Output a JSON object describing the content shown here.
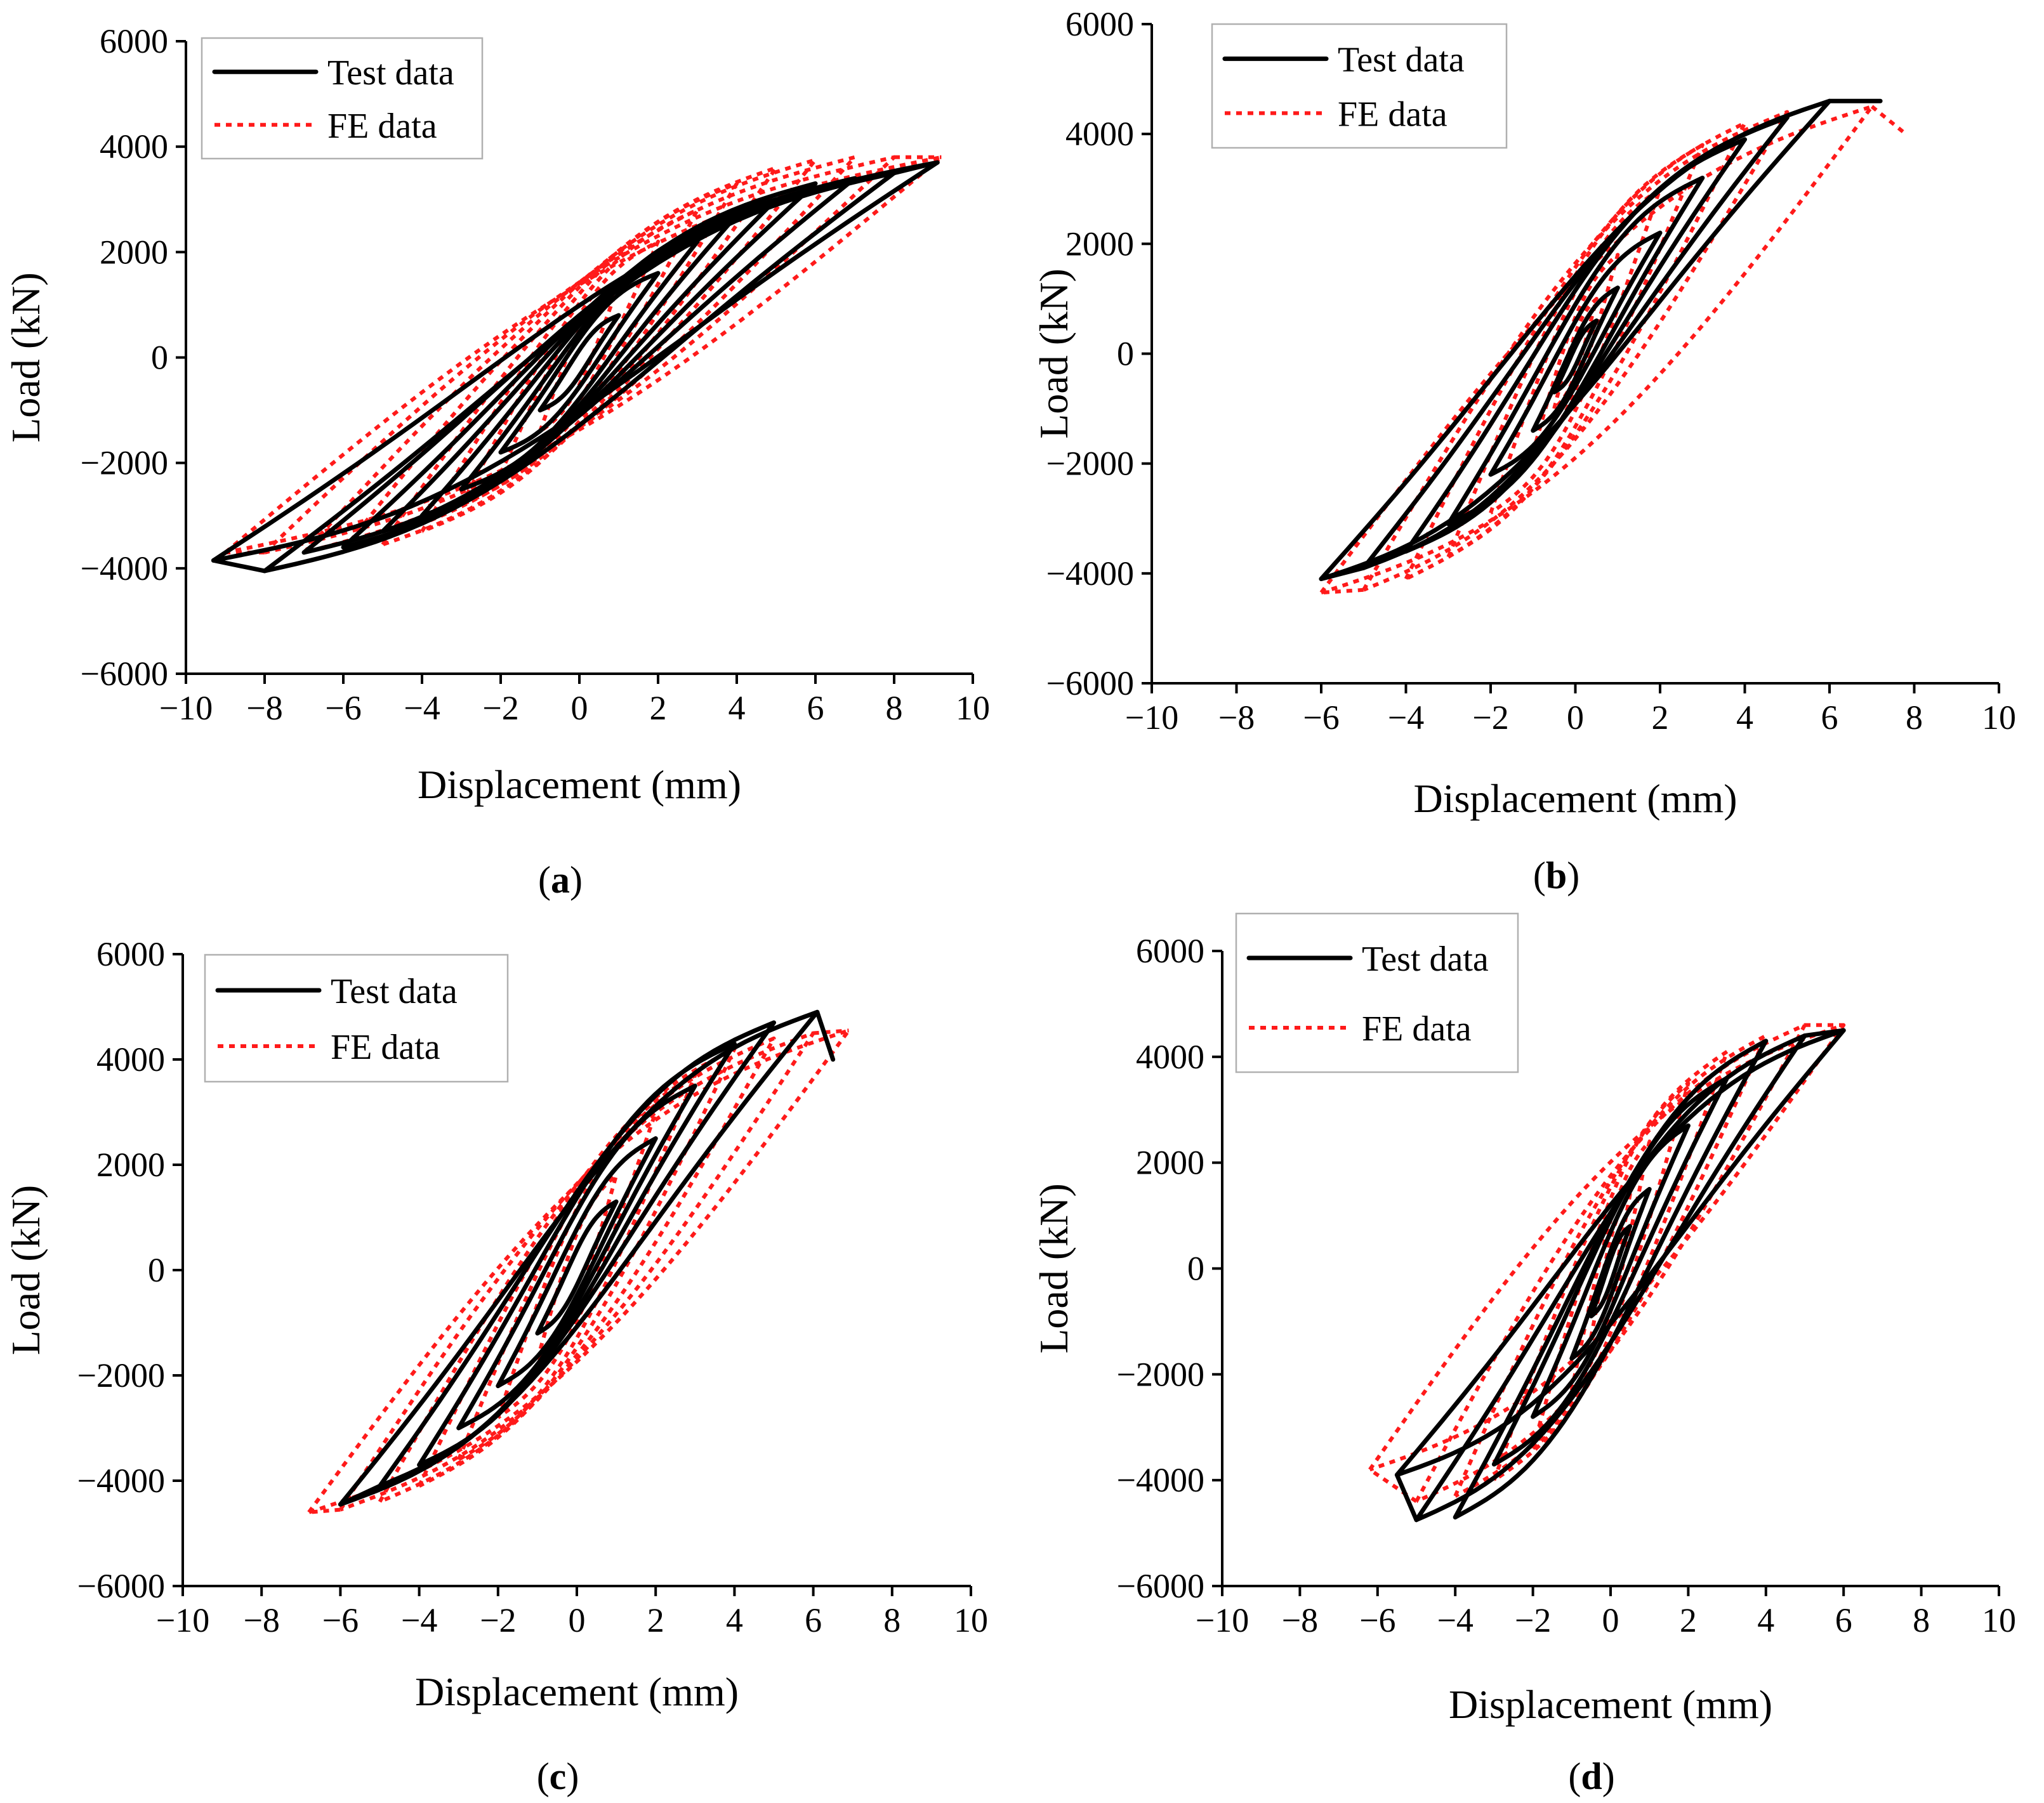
{
  "chart_data": [
    {
      "type": "line",
      "panel_label": "a",
      "xlabel": "Displacement (mm)",
      "ylabel": "Load (kN)",
      "xlim": [
        -10,
        10
      ],
      "ylim": [
        -6000,
        6000
      ],
      "xticks": [
        -10,
        -8,
        -6,
        -4,
        -2,
        0,
        2,
        4,
        6,
        8,
        10
      ],
      "yticks": [
        -6000,
        -4000,
        -2000,
        0,
        2000,
        4000,
        6000
      ],
      "legend_position": "top-left",
      "series": [
        {
          "name": "Test data",
          "style": "solid",
          "color": "#000000",
          "peaks_pos": [
            [
              1.0,
              800
            ],
            [
              2.0,
              1600
            ],
            [
              3.0,
              2200
            ],
            [
              4.0,
              2700
            ],
            [
              5.0,
              3000
            ],
            [
              6.0,
              3300
            ],
            [
              7.0,
              3400
            ],
            [
              8.0,
              3500
            ],
            [
              9.1,
              3700
            ]
          ],
          "peaks_neg": [
            [
              -1.0,
              -1000
            ],
            [
              -2.0,
              -1800
            ],
            [
              -3.0,
              -2500
            ],
            [
              -4.0,
              -3000
            ],
            [
              -5.0,
              -3300
            ],
            [
              -6.0,
              -3600
            ],
            [
              -7.0,
              -3700
            ],
            [
              -8.0,
              -4050
            ],
            [
              -9.3,
              -3850
            ]
          ]
        },
        {
          "name": "FE data",
          "style": "dotted",
          "color": "#ff1a1a",
          "peaks_pos": [
            [
              1.0,
              1400
            ],
            [
              2.0,
              2200
            ],
            [
              3.0,
              2800
            ],
            [
              4.0,
              3300
            ],
            [
              5.0,
              3600
            ],
            [
              6.0,
              3750
            ],
            [
              7.0,
              3800
            ],
            [
              8.0,
              3800
            ],
            [
              9.2,
              3800
            ]
          ],
          "peaks_neg": [
            [
              -1.0,
              -1400
            ],
            [
              -2.0,
              -2200
            ],
            [
              -3.0,
              -2800
            ],
            [
              -4.0,
              -3300
            ],
            [
              -5.0,
              -3550
            ],
            [
              -6.0,
              -3650
            ],
            [
              -7.0,
              -3700
            ],
            [
              -8.0,
              -3700
            ],
            [
              -9.0,
              -3700
            ]
          ]
        }
      ]
    },
    {
      "type": "line",
      "panel_label": "b",
      "xlabel": "Displacement (mm)",
      "ylabel": "Load (kN)",
      "xlim": [
        -10,
        10
      ],
      "ylim": [
        -6000,
        6000
      ],
      "xticks": [
        -10,
        -8,
        -6,
        -4,
        -2,
        0,
        2,
        4,
        6,
        8,
        10
      ],
      "yticks": [
        -6000,
        -4000,
        -2000,
        0,
        2000,
        4000,
        6000
      ],
      "legend_position": "top-left",
      "series": [
        {
          "name": "Test data",
          "style": "solid",
          "color": "#000000",
          "peaks_pos": [
            [
              0.5,
              600
            ],
            [
              1.0,
              1200
            ],
            [
              2.0,
              2200
            ],
            [
              3.0,
              3200
            ],
            [
              4.0,
              3900
            ],
            [
              5.0,
              4300
            ],
            [
              6.0,
              4600
            ],
            [
              7.2,
              4600
            ]
          ],
          "peaks_neg": [
            [
              -0.5,
              -700
            ],
            [
              -1.0,
              -1400
            ],
            [
              -2.0,
              -2200
            ],
            [
              -3.0,
              -3100
            ],
            [
              -4.0,
              -3600
            ],
            [
              -5.0,
              -3900
            ],
            [
              -6.0,
              -4100
            ]
          ]
        },
        {
          "name": "FE data",
          "style": "dotted",
          "color": "#ff1a1a",
          "peaks_pos": [
            [
              0.5,
              1000
            ],
            [
              1.0,
              1800
            ],
            [
              2.0,
              3000
            ],
            [
              3.0,
              3800
            ],
            [
              4.0,
              4200
            ],
            [
              5.0,
              4400
            ],
            [
              7.0,
              4500
            ],
            [
              7.8,
              4000
            ]
          ],
          "peaks_neg": [
            [
              -0.5,
              -1000
            ],
            [
              -1.0,
              -1800
            ],
            [
              -2.0,
              -2900
            ],
            [
              -3.0,
              -3700
            ],
            [
              -4.0,
              -4100
            ],
            [
              -5.0,
              -4300
            ],
            [
              -6.0,
              -4350
            ]
          ]
        }
      ]
    },
    {
      "type": "line",
      "panel_label": "c",
      "xlabel": "Displacement (mm)",
      "ylabel": "Load (kN)",
      "xlim": [
        -10,
        10
      ],
      "ylim": [
        -6000,
        6000
      ],
      "xticks": [
        -10,
        -8,
        -6,
        -4,
        -2,
        0,
        2,
        4,
        6,
        8,
        10
      ],
      "yticks": [
        -6000,
        -4000,
        -2000,
        0,
        2000,
        4000,
        6000
      ],
      "legend_position": "top-left",
      "series": [
        {
          "name": "Test data",
          "style": "solid",
          "color": "#000000",
          "peaks_pos": [
            [
              1.0,
              1300
            ],
            [
              2.0,
              2500
            ],
            [
              3.0,
              3500
            ],
            [
              4.0,
              4300
            ],
            [
              5.0,
              4700
            ],
            [
              6.1,
              4900
            ],
            [
              6.5,
              4000
            ]
          ],
          "peaks_neg": [
            [
              -1.0,
              -1200
            ],
            [
              -2.0,
              -2200
            ],
            [
              -3.0,
              -3000
            ],
            [
              -4.0,
              -3700
            ],
            [
              -5.0,
              -4100
            ],
            [
              -6.0,
              -4450
            ]
          ]
        },
        {
          "name": "FE data",
          "style": "dotted",
          "color": "#ff1a1a",
          "peaks_pos": [
            [
              1.0,
              1800
            ],
            [
              2.0,
              3000
            ],
            [
              3.0,
              3700
            ],
            [
              4.0,
              4200
            ],
            [
              5.0,
              4400
            ],
            [
              6.0,
              4500
            ],
            [
              6.9,
              4550
            ]
          ],
          "peaks_neg": [
            [
              -1.0,
              -1700
            ],
            [
              -2.0,
              -2800
            ],
            [
              -3.0,
              -3600
            ],
            [
              -4.0,
              -4100
            ],
            [
              -5.0,
              -4400
            ],
            [
              -6.0,
              -4550
            ],
            [
              -6.8,
              -4600
            ]
          ]
        }
      ]
    },
    {
      "type": "line",
      "panel_label": "d",
      "xlabel": "Displacement (mm)",
      "ylabel": "Load (kN)",
      "xlim": [
        -10,
        10
      ],
      "ylim": [
        -6000,
        6000
      ],
      "xticks": [
        -10,
        -8,
        -6,
        -4,
        -2,
        0,
        2,
        4,
        6,
        8,
        10
      ],
      "yticks": [
        -6000,
        -4000,
        -2000,
        0,
        2000,
        4000,
        6000
      ],
      "legend_position": "top-left",
      "series": [
        {
          "name": "Test data",
          "style": "solid",
          "color": "#000000",
          "peaks_pos": [
            [
              0.5,
              800
            ],
            [
              1.0,
              1500
            ],
            [
              2.0,
              2700
            ],
            [
              3.0,
              3600
            ],
            [
              4.0,
              4300
            ],
            [
              5.0,
              4400
            ],
            [
              6.0,
              4500
            ]
          ],
          "peaks_neg": [
            [
              -0.5,
              -900
            ],
            [
              -1.0,
              -1700
            ],
            [
              -2.0,
              -2800
            ],
            [
              -3.0,
              -3700
            ],
            [
              -4.0,
              -4700
            ],
            [
              -5.0,
              -4750
            ],
            [
              -5.5,
              -3900
            ]
          ]
        },
        {
          "name": "FE data",
          "style": "dotted",
          "color": "#ff1a1a",
          "peaks_pos": [
            [
              0.5,
              1400
            ],
            [
              1.0,
              2400
            ],
            [
              2.0,
              3500
            ],
            [
              3.0,
              4100
            ],
            [
              4.0,
              4400
            ],
            [
              5.0,
              4600
            ],
            [
              6.0,
              4600
            ]
          ],
          "peaks_neg": [
            [
              -0.5,
              -1300
            ],
            [
              -1.0,
              -2300
            ],
            [
              -2.0,
              -3400
            ],
            [
              -3.0,
              -4000
            ],
            [
              -4.0,
              -4300
            ],
            [
              -5.0,
              -4400
            ],
            [
              -6.2,
              -3800
            ]
          ]
        }
      ]
    }
  ]
}
